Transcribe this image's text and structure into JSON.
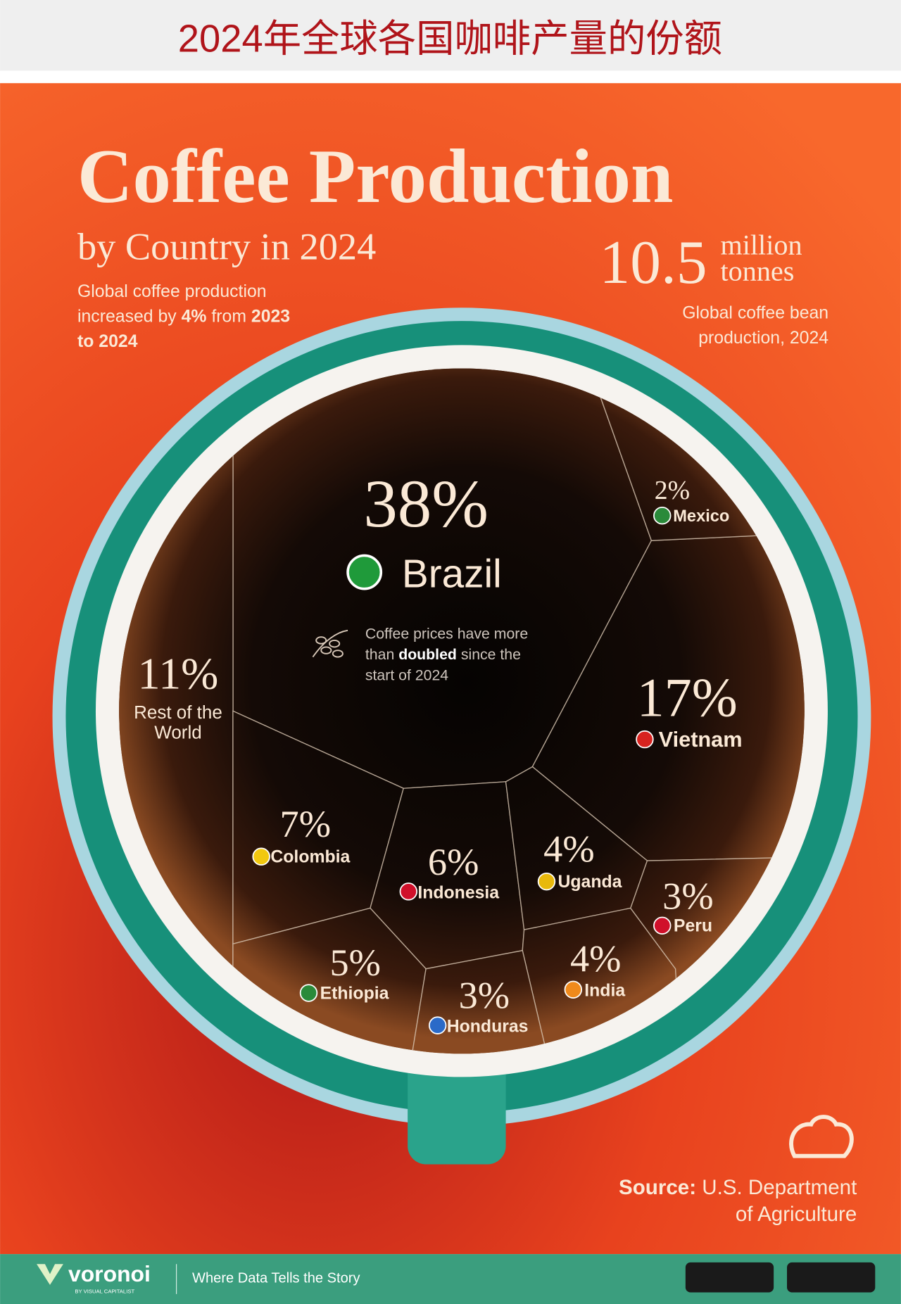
{
  "header": {
    "title": "2024年全球各国咖啡产量的份额"
  },
  "chart_data": {
    "type": "voronoi",
    "title": "Coffee Production",
    "subtitle": "by Country in 2024",
    "note": [
      "Global coffee production increased by ",
      "4%",
      " from ",
      "2023 to 2024"
    ],
    "total_value": 10.5,
    "total_unit": "million tonnes",
    "total_caption": "Global coffee bean production, 2024",
    "annotation": [
      "Coffee prices have more than ",
      "doubled",
      " since the start of 2024"
    ],
    "categories": [
      "Brazil",
      "Vietnam",
      "Rest of the World",
      "Colombia",
      "Indonesia",
      "Ethiopia",
      "Uganda",
      "India",
      "Peru",
      "Honduras",
      "Mexico"
    ],
    "values": [
      38,
      17,
      11,
      7,
      6,
      5,
      4,
      4,
      3,
      3,
      2
    ],
    "value_labels": [
      "38%",
      "17%",
      "11%",
      "7%",
      "6%",
      "5%",
      "4%",
      "4%",
      "3%",
      "3%",
      "2%"
    ],
    "source": [
      "Source:",
      " U.S. Department of Agriculture"
    ]
  },
  "footer": {
    "brand": "voronoi",
    "byline": "BY VISUAL CAPITALIST",
    "tagline": "Where Data Tells the Story"
  }
}
